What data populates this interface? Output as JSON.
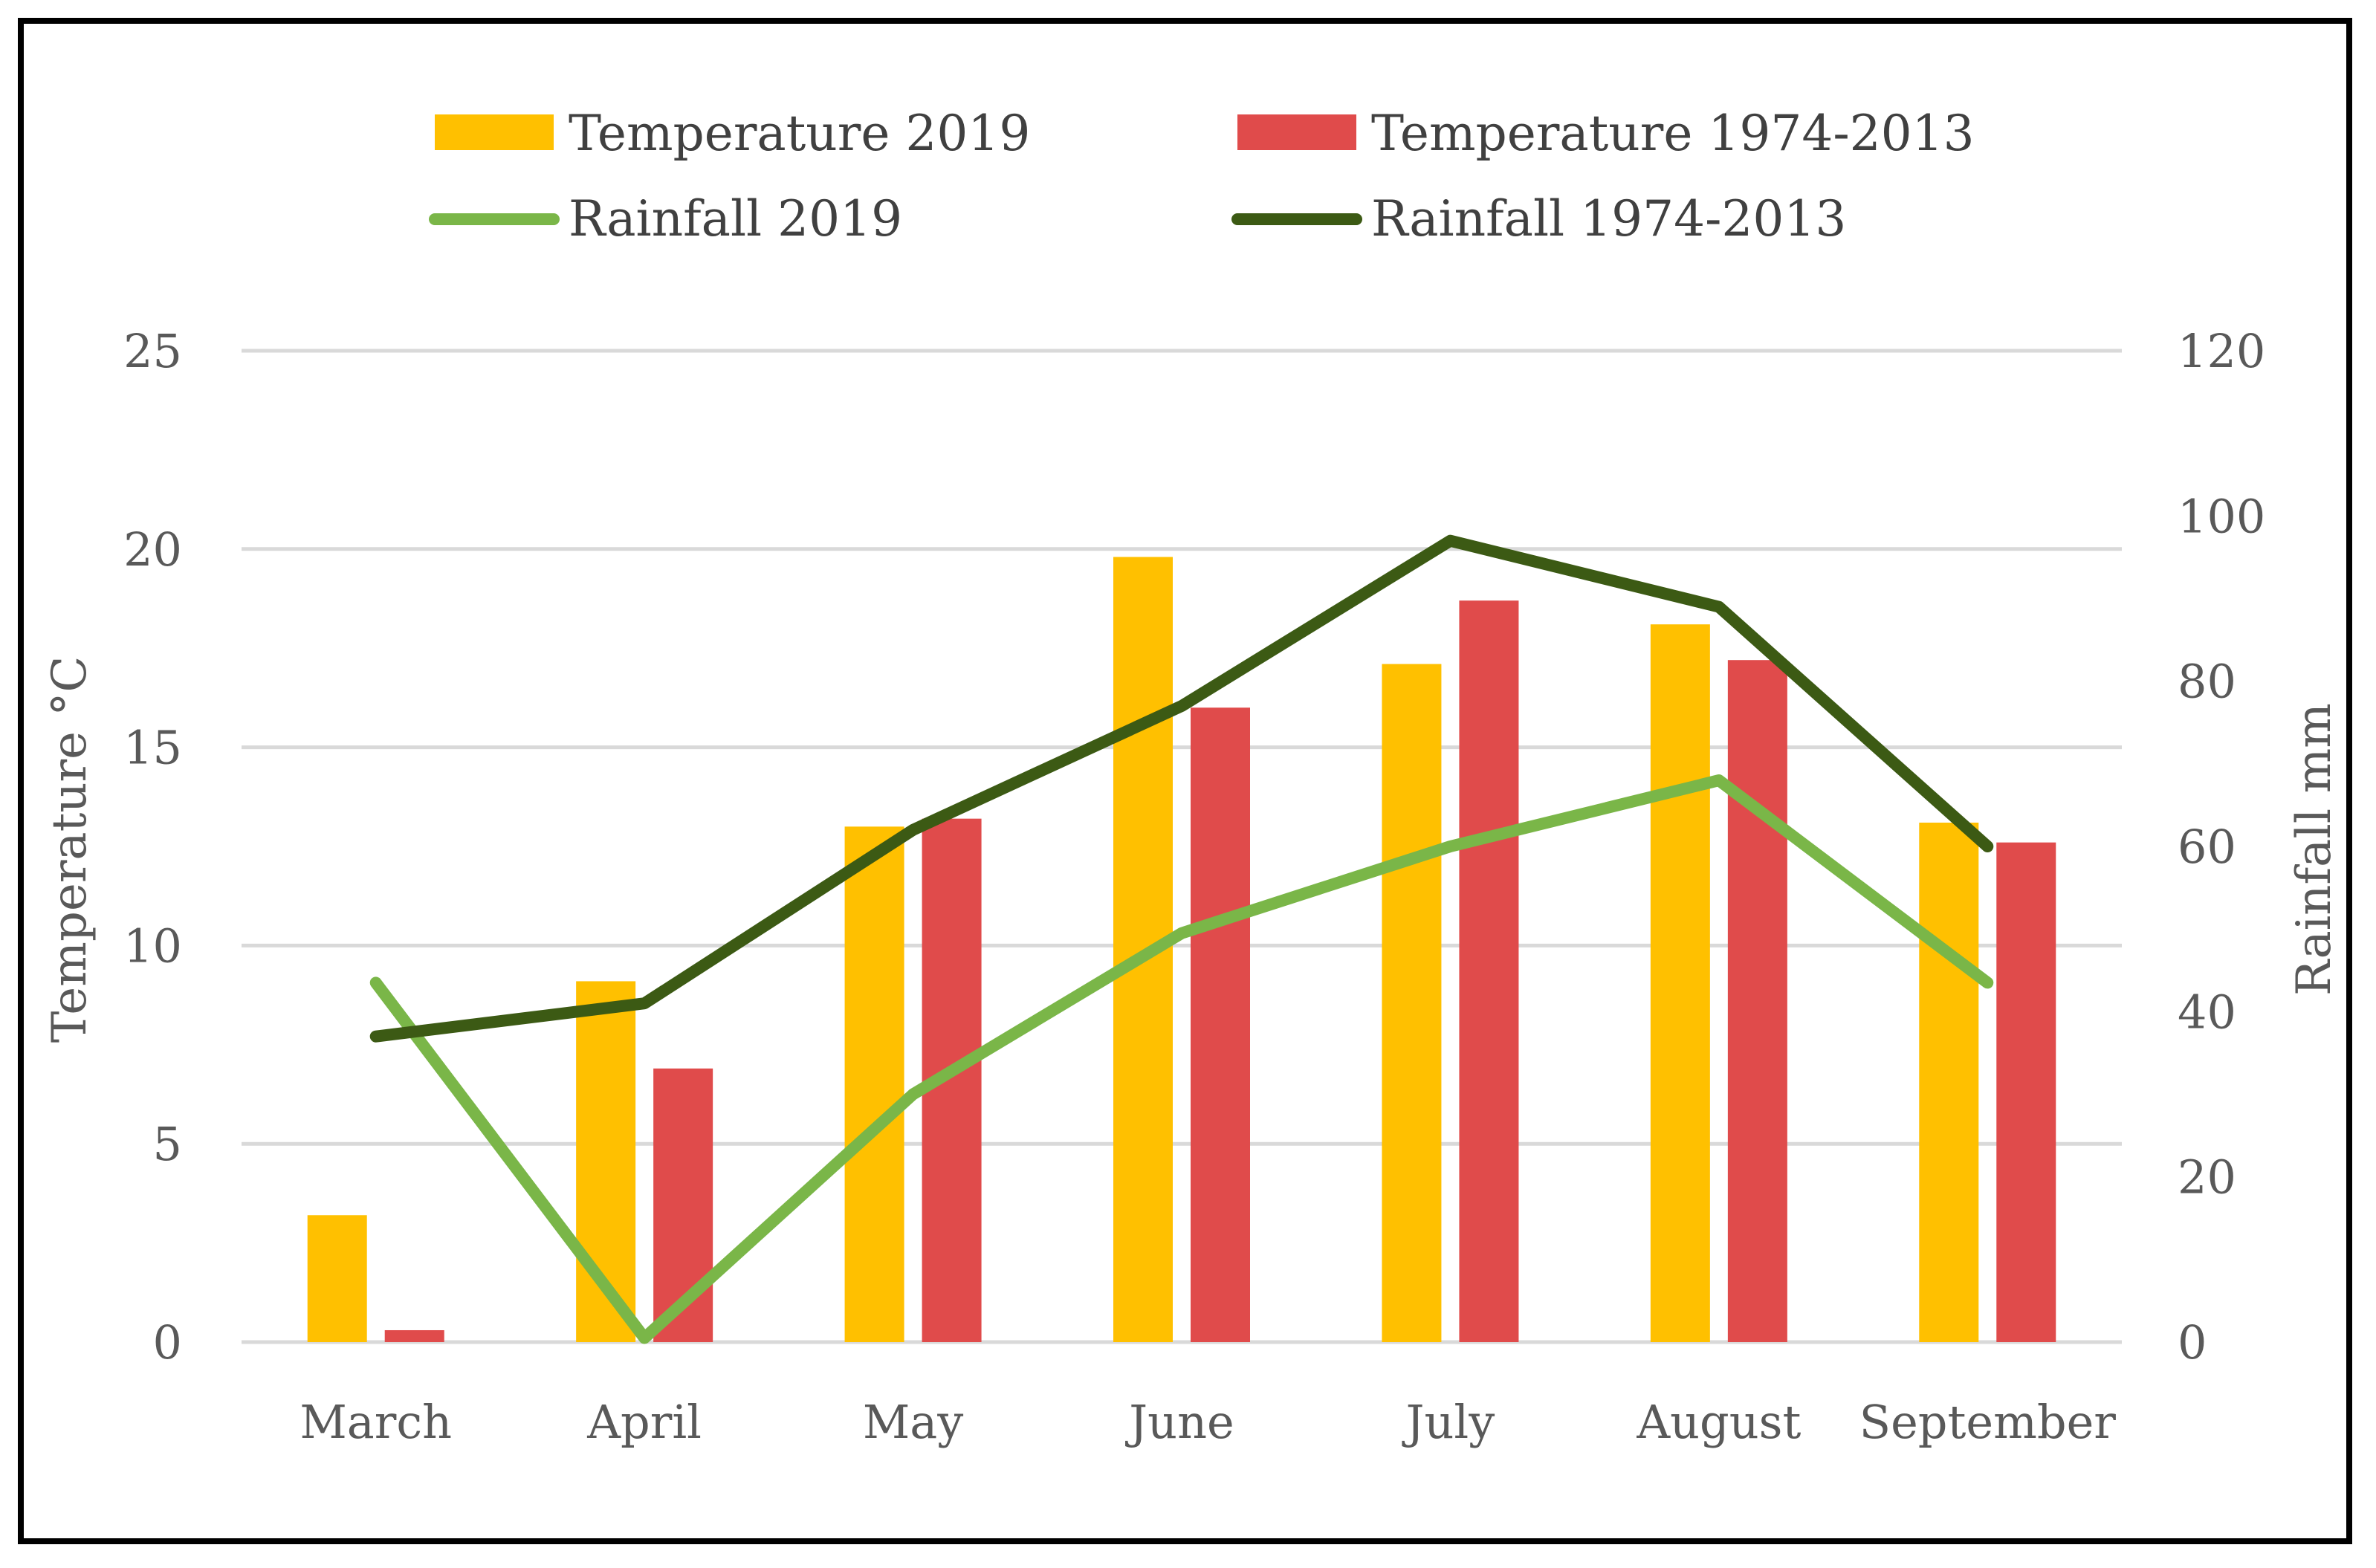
{
  "chart_data": {
    "type": "bar",
    "categories": [
      "March",
      "April",
      "May",
      "June",
      "July",
      "August",
      "September"
    ],
    "series": [
      {
        "name": "Temperature 2019",
        "kind": "bar",
        "axis": "left",
        "color": "#FFC000",
        "values": [
          3.2,
          9.1,
          13.0,
          19.8,
          17.1,
          18.1,
          13.1
        ]
      },
      {
        "name": "Temperature 1974-2013",
        "kind": "bar",
        "axis": "left",
        "color": "#E04B4B",
        "values": [
          0.3,
          6.9,
          13.2,
          16.0,
          18.7,
          17.2,
          12.6
        ]
      },
      {
        "name": "Rainfall 2019",
        "kind": "line",
        "axis": "right",
        "color": "#7AB648",
        "values": [
          43.5,
          0.5,
          30.0,
          49.5,
          60.0,
          68.0,
          43.5
        ]
      },
      {
        "name": "Rainfall 1974-2013",
        "kind": "line",
        "axis": "right",
        "color": "#3C5A14",
        "values": [
          37.0,
          41.0,
          62.0,
          77.0,
          97.0,
          89.0,
          60.0
        ]
      }
    ],
    "ylabel": "Temperature °C",
    "y2label": "Rainfall mm",
    "ylim": [
      0,
      25
    ],
    "y2lim": [
      0,
      120
    ],
    "yticks": [
      0,
      5,
      10,
      15,
      20,
      25
    ],
    "y2ticks": [
      0,
      20,
      40,
      60,
      80,
      100,
      120
    ],
    "grid": true,
    "legend_position": "top"
  }
}
